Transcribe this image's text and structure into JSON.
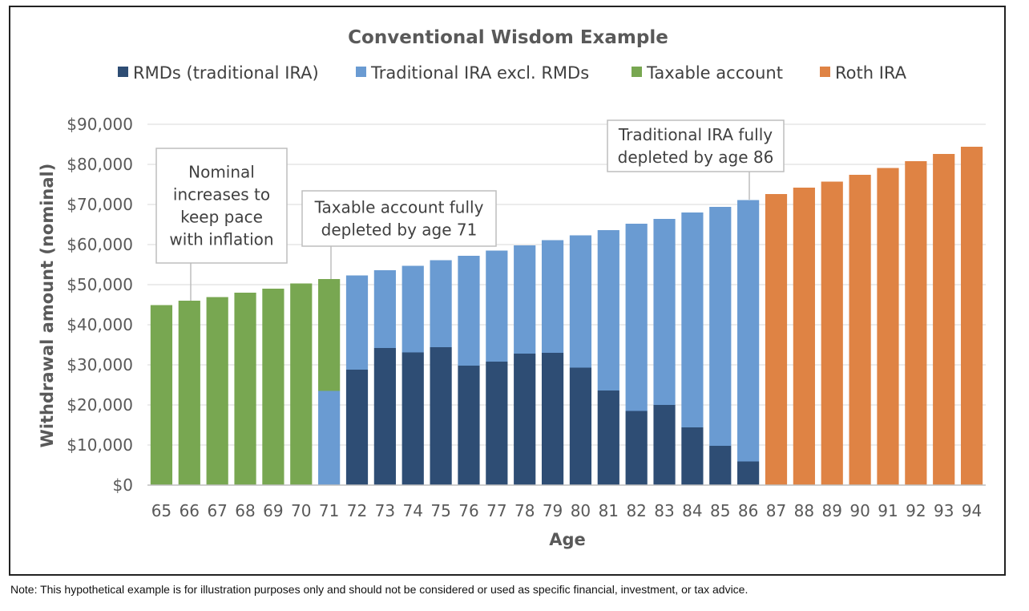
{
  "colors": {
    "rmd": "#2e4d74",
    "trad": "#6a9bd2",
    "taxable": "#78a751",
    "roth": "#df8344",
    "grid": "#d9d9d9",
    "axis": "#bfbfbf"
  },
  "chart_data": {
    "type": "bar",
    "stacked": true,
    "title": "Conventional Wisdom Example",
    "xlabel": "Age",
    "ylabel": "Withdrawal amount (nominal)",
    "ylim": [
      0,
      90000
    ],
    "yticks": [
      0,
      10000,
      20000,
      30000,
      40000,
      50000,
      60000,
      70000,
      80000,
      90000
    ],
    "ytick_labels": [
      "$0",
      "$10,000",
      "$20,000",
      "$30,000",
      "$40,000",
      "$50,000",
      "$60,000",
      "$70,000",
      "$80,000",
      "$90,000"
    ],
    "grid": true,
    "legend_position": "top",
    "categories": [
      "65",
      "66",
      "67",
      "68",
      "69",
      "70",
      "71",
      "72",
      "73",
      "74",
      "75",
      "76",
      "77",
      "78",
      "79",
      "80",
      "81",
      "82",
      "83",
      "84",
      "85",
      "86",
      "87",
      "88",
      "89",
      "90",
      "91",
      "92",
      "93",
      "94"
    ],
    "series": [
      {
        "name": "RMDs (traditional IRA)",
        "color_key": "rmd",
        "values": [
          0,
          0,
          0,
          0,
          0,
          0,
          0,
          28800,
          34200,
          33100,
          34400,
          29800,
          30800,
          32800,
          33000,
          29300,
          23600,
          18500,
          20000,
          14400,
          9800,
          5900,
          0,
          0,
          0,
          0,
          0,
          0,
          0,
          0
        ]
      },
      {
        "name": "Traditional IRA excl. RMDs",
        "color_key": "trad",
        "values": [
          0,
          0,
          0,
          0,
          0,
          0,
          23500,
          23500,
          19400,
          21600,
          21700,
          27400,
          27700,
          27000,
          28100,
          33000,
          40000,
          46700,
          46400,
          53600,
          59600,
          65200,
          0,
          0,
          0,
          0,
          0,
          0,
          0,
          0
        ]
      },
      {
        "name": "Taxable account",
        "color_key": "taxable",
        "values": [
          44900,
          46000,
          46900,
          48000,
          49000,
          50300,
          27900,
          0,
          0,
          0,
          0,
          0,
          0,
          0,
          0,
          0,
          0,
          0,
          0,
          0,
          0,
          0,
          0,
          0,
          0,
          0,
          0,
          0,
          0,
          0
        ]
      },
      {
        "name": "Roth IRA",
        "color_key": "roth",
        "values": [
          0,
          0,
          0,
          0,
          0,
          0,
          0,
          0,
          0,
          0,
          0,
          0,
          0,
          0,
          0,
          0,
          0,
          0,
          0,
          0,
          0,
          0,
          72600,
          74200,
          75700,
          77400,
          79100,
          80800,
          82600,
          84400
        ]
      }
    ],
    "annotations": [
      {
        "lines": [
          "Nominal",
          "increases to",
          "keep pace",
          "with inflation"
        ],
        "target_category": "66"
      },
      {
        "lines": [
          "Taxable account fully",
          "depleted by age 71"
        ],
        "target_category": "71"
      },
      {
        "lines": [
          "Traditional IRA fully",
          "depleted by age 86"
        ],
        "target_category": "86"
      }
    ]
  },
  "note": "Note: This hypothetical example is for illustration purposes only and should not be considered or used as specific financial, investment, or tax advice."
}
